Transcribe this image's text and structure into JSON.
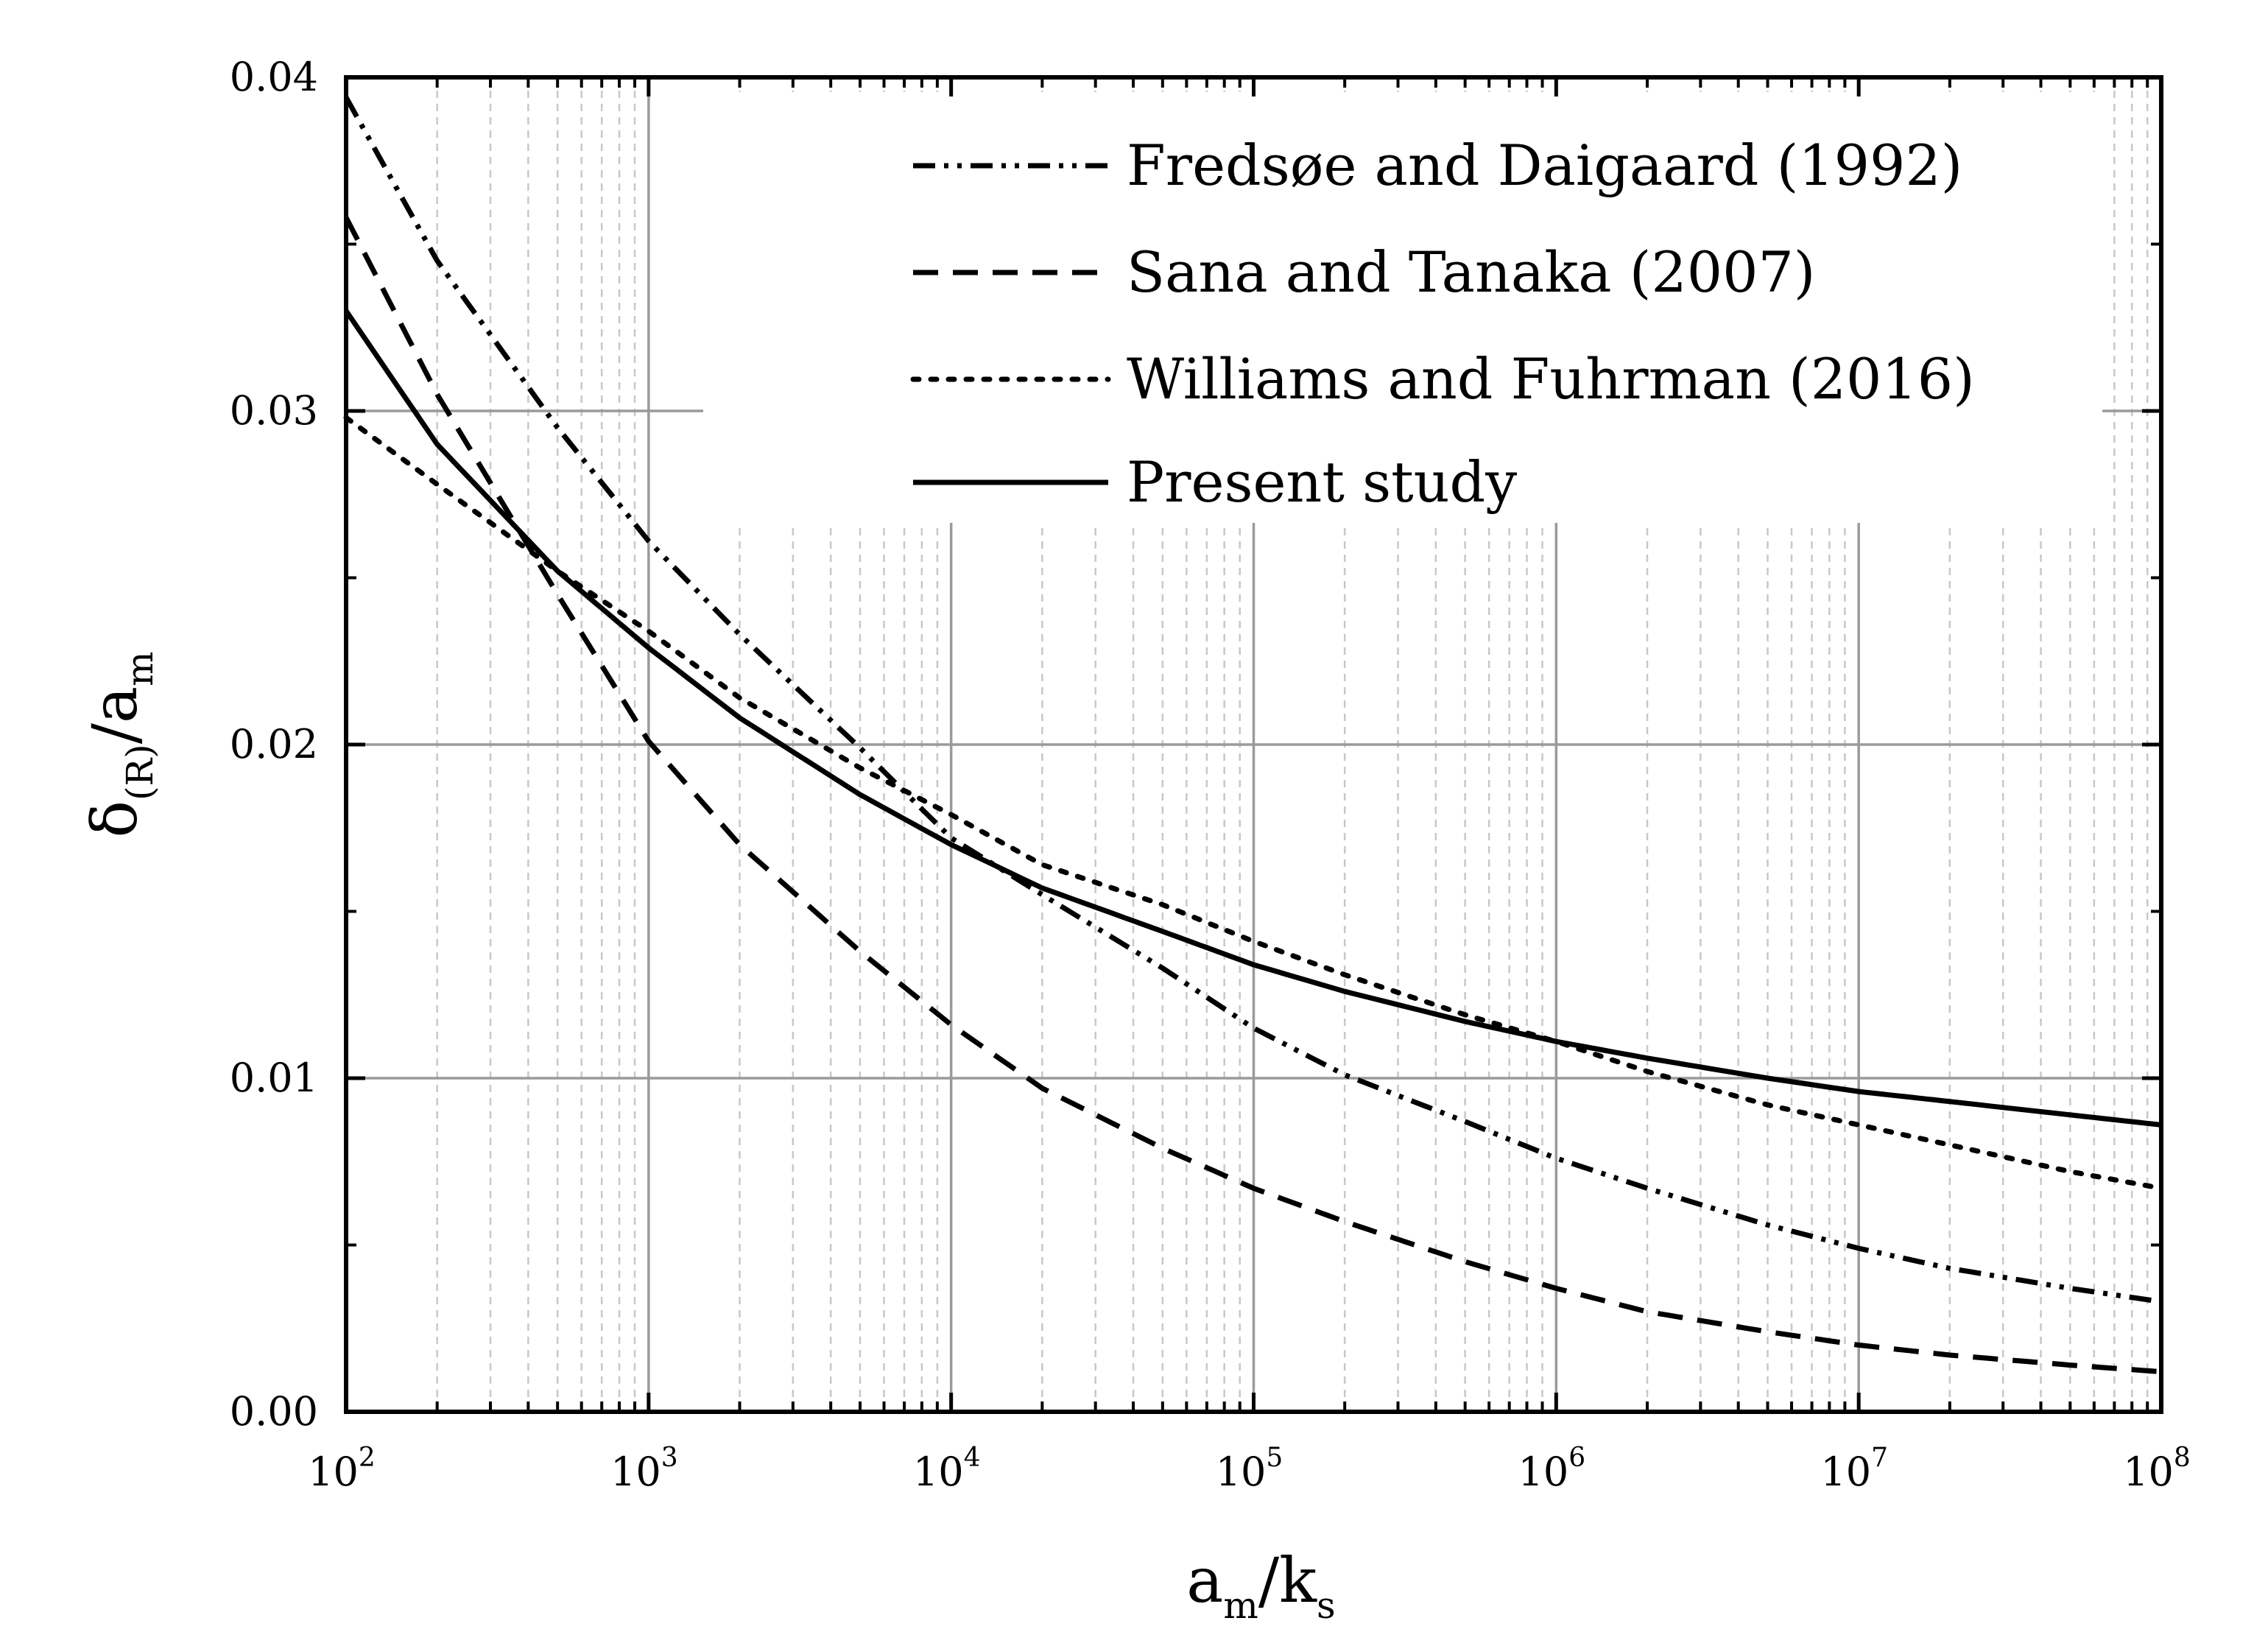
{
  "chart_data": {
    "type": "line",
    "xscale": "log",
    "x_range": [
      100,
      100000000
    ],
    "ylim": [
      0,
      0.04
    ],
    "grid": true,
    "xlabel": {
      "main": "a",
      "sub1": "m",
      "sep": "/k",
      "sub2": "s"
    },
    "ylabel": {
      "main": "δ",
      "sub1": "(R)",
      "sep": "/a",
      "sub2": "m"
    },
    "x_ticks": [
      {
        "base": "10",
        "exp": "2"
      },
      {
        "base": "10",
        "exp": "3"
      },
      {
        "base": "10",
        "exp": "4"
      },
      {
        "base": "10",
        "exp": "5"
      },
      {
        "base": "10",
        "exp": "6"
      },
      {
        "base": "10",
        "exp": "7"
      },
      {
        "base": "10",
        "exp": "8"
      }
    ],
    "y_ticks": [
      "0.00",
      "0.01",
      "0.02",
      "0.03",
      "0.04"
    ],
    "legend_position": "top-right",
    "series": [
      {
        "name": "Fredsøe and Daigaard (1992)",
        "dash": "dash-dot-dot",
        "x": [
          100,
          200,
          500,
          1000,
          2000,
          5000,
          10000,
          20000,
          50000,
          100000,
          200000,
          500000,
          1000000,
          2000000,
          5000000,
          10000000,
          20000000,
          50000000,
          100000000
        ],
        "y": [
          0.0394,
          0.0345,
          0.0295,
          0.0261,
          0.0233,
          0.0199,
          0.0172,
          0.0155,
          0.0133,
          0.0115,
          0.0101,
          0.0087,
          0.0076,
          0.0067,
          0.0056,
          0.0049,
          0.0043,
          0.0037,
          0.0033
        ]
      },
      {
        "name": "Sana and Tanaka (2007)",
        "dash": "dashed",
        "x": [
          100,
          200,
          500,
          1000,
          2000,
          5000,
          10000,
          20000,
          50000,
          100000,
          200000,
          500000,
          1000000,
          2000000,
          5000000,
          10000000,
          20000000,
          50000000,
          100000000
        ],
        "y": [
          0.0358,
          0.0305,
          0.0245,
          0.0201,
          0.017,
          0.0138,
          0.0116,
          0.0097,
          0.0079,
          0.0067,
          0.0057,
          0.0045,
          0.0037,
          0.003,
          0.0024,
          0.002,
          0.0017,
          0.0014,
          0.0012
        ]
      },
      {
        "name": "Williams and Fuhrman (2016)",
        "dash": "dotted",
        "x": [
          100,
          200,
          500,
          1000,
          2000,
          5000,
          10000,
          20000,
          50000,
          100000,
          200000,
          500000,
          1000000,
          2000000,
          5000000,
          10000000,
          20000000,
          50000000,
          100000000
        ],
        "y": [
          0.0298,
          0.0278,
          0.0252,
          0.0234,
          0.0214,
          0.0193,
          0.0179,
          0.0164,
          0.0152,
          0.0141,
          0.0131,
          0.0119,
          0.0111,
          0.0102,
          0.0092,
          0.0086,
          0.008,
          0.0072,
          0.0067
        ]
      },
      {
        "name": "Present study",
        "dash": "solid",
        "x": [
          100,
          200,
          500,
          1000,
          2000,
          5000,
          10000,
          20000,
          50000,
          100000,
          200000,
          500000,
          1000000,
          2000000,
          5000000,
          10000000,
          20000000,
          50000000,
          100000000
        ],
        "y": [
          0.033,
          0.029,
          0.0252,
          0.0229,
          0.0208,
          0.0185,
          0.017,
          0.0157,
          0.0144,
          0.0134,
          0.0126,
          0.0117,
          0.0111,
          0.0106,
          0.01,
          0.0096,
          0.0093,
          0.0089,
          0.0086
        ]
      }
    ]
  }
}
